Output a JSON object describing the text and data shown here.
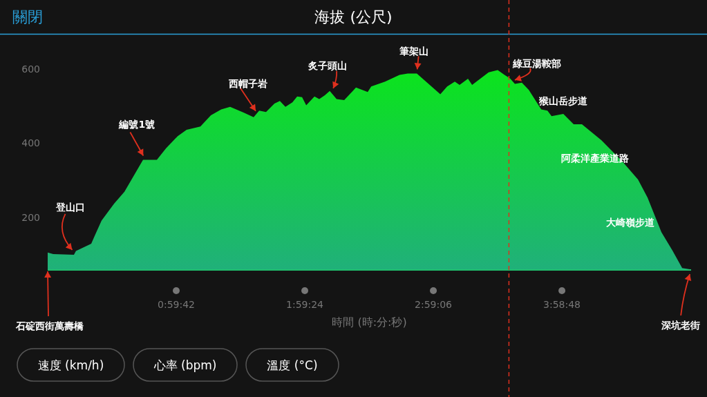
{
  "chart_data": {
    "type": "area",
    "title": "海拔 (公尺)",
    "xlabel": "時間 (時:分:秒)",
    "x": [
      0,
      0.043,
      0.203,
      0.219,
      0.337,
      0.364,
      0.417,
      0.514,
      0.594,
      0.738,
      0.845,
      0.915,
      1.006,
      1.075,
      1.182,
      1.263,
      1.343,
      1.412,
      1.519,
      1.594,
      1.637,
      1.69,
      1.755,
      1.797,
      1.84,
      1.894,
      1.931,
      1.969,
      2.001,
      2.065,
      2.102,
      2.145,
      2.183,
      2.236,
      2.295,
      2.386,
      2.477,
      2.504,
      2.611,
      2.723,
      2.787,
      2.857,
      2.948,
      3.039,
      3.092,
      3.151,
      3.188,
      3.253,
      3.285,
      3.413,
      3.483,
      3.536,
      3.578,
      3.616,
      3.67,
      3.723,
      3.82,
      3.868,
      3.9,
      3.991,
      4.071,
      4.135,
      4.285,
      4.445,
      4.569,
      4.643,
      4.75,
      4.836,
      4.911,
      4.97
    ],
    "series": [
      {
        "color": "#0be41c",
        "values": [
          105,
          101,
          99,
          109,
          129,
          150,
          191,
          237,
          269,
          355,
          355,
          386,
          419,
          436,
          445,
          475,
          491,
          498,
          482,
          470,
          488,
          484,
          507,
          514,
          498,
          510,
          526,
          524,
          502,
          526,
          519,
          529,
          541,
          519,
          516,
          550,
          538,
          553,
          566,
          584,
          588,
          588,
          560,
          532,
          553,
          566,
          557,
          574,
          557,
          591,
          597,
          584,
          575,
          560,
          563,
          544,
          491,
          488,
          473,
          479,
          451,
          451,
          408,
          352,
          302,
          253,
          160,
          110,
          63,
          60
        ]
      }
    ],
    "xlim": [
      0,
      4.98
    ],
    "ylim": [
      58,
      600
    ],
    "xticks": [
      {
        "value": 0.995,
        "label": "0:59:42"
      },
      {
        "value": 1.99,
        "label": "1:59:24"
      },
      {
        "value": 2.985,
        "label": "2:59:06"
      },
      {
        "value": 3.98,
        "label": "3:58:48"
      }
    ],
    "yticks": [
      200,
      400,
      600
    ],
    "grid": false,
    "ref_lines": [
      {
        "axis": "x",
        "value": 3.57,
        "color": "#e0301e",
        "line_style": "dashed"
      }
    ],
    "annotations": [
      {
        "text": "石碇西街萬壽橋",
        "x": 0,
        "y": 58
      },
      {
        "text": "登山口",
        "x": 0.19,
        "y": 101
      },
      {
        "text": "編號1號",
        "x": 0.74,
        "y": 355
      },
      {
        "text": "西帽子岩",
        "x": 1.61,
        "y": 472
      },
      {
        "text": "炙子頭山",
        "x": 2.21,
        "y": 535
      },
      {
        "text": "筆架山",
        "x": 2.86,
        "y": 588
      },
      {
        "text": "綠豆湯鞍部",
        "x": 3.61,
        "y": 565
      },
      {
        "text": "猴山岳步道",
        "x": 3.82,
        "y": 491
      },
      {
        "text": "阿柔洋產業道路",
        "x": 4.45,
        "y": 352
      },
      {
        "text": "大崎嶺步道",
        "x": 4.75,
        "y": 160
      },
      {
        "text": "深坑老街",
        "x": 4.97,
        "y": 60
      },
      "關閉",
      "速度 (km/h)",
      "心率 (bpm)",
      "溫度 (°C)"
    ]
  }
}
